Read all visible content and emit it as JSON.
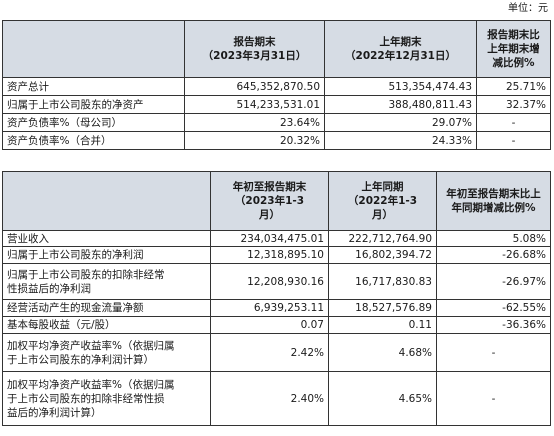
{
  "unit_label": "单位：元",
  "table1": {
    "headers": [
      "",
      "报告期末\n（2023年3月31日）",
      "上年期末\n（2022年12月31日）",
      "报告期末比\n上年期末增\n减比例%"
    ],
    "rows": [
      [
        "资产总计",
        "645,352,870.50",
        "513,354,474.43",
        "25.71%"
      ],
      [
        "归属于上市公司股东的净资产",
        "514,233,531.01",
        "388,480,811.43",
        "32.37%"
      ],
      [
        "资产负债率%（母公司）",
        "23.64%",
        "29.07%",
        "-"
      ],
      [
        "资产负债率%（合并）",
        "20.32%",
        "24.33%",
        "-"
      ]
    ]
  },
  "table2": {
    "headers": [
      "",
      "年初至报告期末\n（2023年1-3\n月）",
      "上年同期\n（2022年1-3\n月）",
      "年初至报告期末比上\n年同期增减比例%"
    ],
    "rows": [
      [
        "营业收入",
        "234,034,475.01",
        "222,712,764.90",
        "5.08%"
      ],
      [
        "归属于上市公司股东的净利润",
        "12,318,895.10",
        "16,802,394.72",
        "-26.68%"
      ],
      [
        "归属于上市公司股东的扣除非经常\n性损益后的净利润",
        "12,208,930.16",
        "16,717,830.83",
        "-26.97%"
      ],
      [
        "经营活动产生的现金流量净额",
        "6,939,253.11",
        "18,527,576.89",
        "-62.55%"
      ],
      [
        "基本每股收益（元/股）",
        "0.07",
        "0.11",
        "-36.36%"
      ],
      [
        "加权平均净资产收益率%（依据归属\n于上市公司股东的净利润计算）",
        "2.42%",
        "4.68%",
        "-"
      ],
      [
        "加权平均净资产收益率%（依据归属\n于上市公司股东的扣除非经常性损\n益后的净利润计算）",
        "2.40%",
        "4.65%",
        "-"
      ]
    ]
  }
}
